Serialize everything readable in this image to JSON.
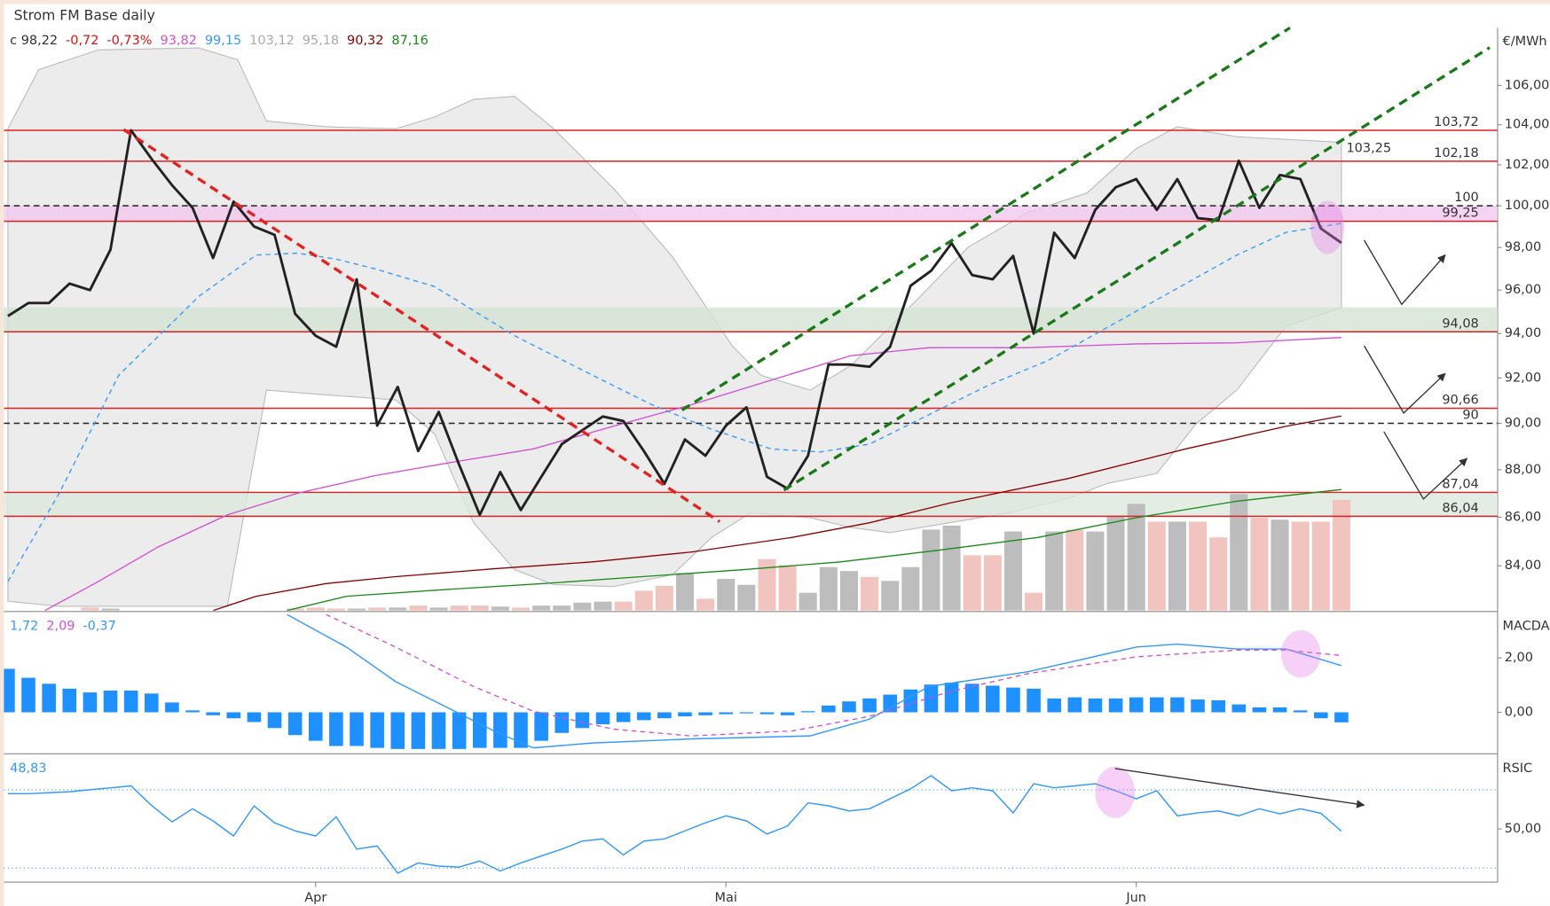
{
  "header": {
    "title": "Strom FM Base daily",
    "legend": [
      {
        "text": "c 98,22",
        "color": "#333333"
      },
      {
        "text": "-0,72",
        "color": "#dd1111"
      },
      {
        "text": "-0,73%",
        "color": "#dd1111"
      },
      {
        "text": "93,82",
        "color": "#d050d0"
      },
      {
        "text": "99,15",
        "color": "#3399ff"
      },
      {
        "text": "103,12",
        "color": "#aaaaaa"
      },
      {
        "text": "95,18",
        "color": "#aaaaaa"
      },
      {
        "text": "90,32",
        "color": "#8b0000"
      },
      {
        "text": "87,16",
        "color": "#1a8a1a"
      }
    ],
    "annotation": {
      "text": "103,25",
      "color": "#1a8a1a"
    }
  },
  "chart_data": [
    {
      "type": "line",
      "unit": "€/MWh",
      "log": true,
      "categories": [
        null,
        null,
        null,
        null,
        null,
        null,
        null,
        null,
        null,
        null,
        null,
        null,
        null,
        null,
        null,
        "Apr",
        null,
        null,
        null,
        null,
        null,
        null,
        null,
        null,
        null,
        null,
        null,
        null,
        null,
        null,
        null,
        null,
        null,
        null,
        null,
        "Mai",
        null,
        null,
        null,
        null,
        null,
        null,
        null,
        null,
        null,
        null,
        null,
        null,
        null,
        null,
        null,
        null,
        null,
        null,
        null,
        "Jun",
        null,
        null,
        null,
        null,
        null,
        null,
        null,
        null,
        null,
        null
      ],
      "ylim": [
        82.2,
        109
      ],
      "yticks": [
        {
          "value": 84,
          "label": "84,00"
        },
        {
          "value": 86,
          "label": "86,00"
        },
        {
          "value": 88,
          "label": "88,00"
        },
        {
          "value": 90,
          "label": "90,00"
        },
        {
          "value": 92,
          "label": "92,00"
        },
        {
          "value": 94,
          "label": "94,00"
        },
        {
          "value": 96,
          "label": "96,00"
        },
        {
          "value": 98,
          "label": "98,00"
        },
        {
          "value": 100,
          "label": "100,00"
        },
        {
          "value": 102,
          "label": "102,00"
        },
        {
          "value": 104,
          "label": "104,00"
        },
        {
          "value": 106,
          "label": "106,00"
        }
      ],
      "band": {
        "color": "#ececec",
        "upper": {
          "x": [
            0,
            1.5,
            4.4,
            9.3,
            11.2,
            12.6,
            15.5,
            18.9,
            20.8,
            22.7,
            24.7,
            26.6,
            29.5,
            32.4,
            35.3,
            36.7,
            39.1,
            41.1,
            44.0,
            46.8,
            49.7,
            52.6,
            55.0,
            57.0,
            59.9,
            65.0
          ],
          "values": [
            103.8,
            106.81,
            107.84,
            107.94,
            107.33,
            104.19,
            103.9,
            103.8,
            104.39,
            105.29,
            105.44,
            103.8,
            100.86,
            97.55,
            93.45,
            92.12,
            91.46,
            92.56,
            95.25,
            98.01,
            99.67,
            100.62,
            102.81,
            103.9,
            103.4,
            103.12
          ]
        },
        "lower": {
          "x": [
            0,
            2.5,
            10.7,
            12.6,
            15.5,
            18.9,
            20.8,
            22.7,
            24.7,
            26.6,
            29.5,
            32.4,
            34.3,
            36.2,
            39.1,
            41.1,
            43.0,
            45.9,
            48.8,
            51.7,
            53.6,
            56.0,
            57.9,
            59.9,
            62.3,
            65.0
          ],
          "values": [
            82.57,
            82.37,
            82.37,
            91.46,
            91.25,
            91.03,
            89.53,
            85.77,
            83.84,
            83.24,
            83.16,
            83.64,
            85.16,
            86.18,
            85.98,
            85.57,
            85.36,
            85.77,
            86.18,
            86.79,
            87.42,
            87.84,
            89.96,
            91.46,
            94.34,
            95.18
          ]
        }
      },
      "zones": [
        {
          "from": 99.25,
          "to": 100,
          "color": "#f3c8f0"
        },
        {
          "from": 94.08,
          "to": 95.2,
          "color": "#d3e3d3"
        },
        {
          "from": 86.04,
          "to": 87.04,
          "color": "#dce8dc"
        }
      ],
      "levels": [
        {
          "value": 103.72,
          "label": "103,72",
          "color": "#e02020"
        },
        {
          "value": 102.18,
          "label": "102,18",
          "color": "#e02020"
        },
        {
          "value": 100,
          "color": "#222222",
          "dash": true
        },
        {
          "value": 99.25,
          "label": "99,25",
          "color": "#e02020"
        },
        {
          "value": 94.08,
          "label": "94,08",
          "color": "#e02020"
        },
        {
          "value": 90.66,
          "label": "90,66",
          "color": "#e02020"
        },
        {
          "value": 90,
          "color": "#222222",
          "dash": true
        },
        {
          "value": 87.04,
          "label": "87,04",
          "color": "#e02020"
        },
        {
          "value": 86.04,
          "label": "86,04",
          "color": "#e02020"
        }
      ],
      "volume": {
        "vlim": [
          0,
          590
        ],
        "up_color": "#bdbdbd",
        "down_color": "#f2c4c0",
        "values": [
          0,
          0,
          0,
          0,
          3,
          2,
          0,
          0,
          0,
          0,
          0,
          0,
          0,
          0,
          2,
          3,
          2,
          2,
          3,
          3,
          5,
          3,
          5,
          5,
          4,
          3,
          5,
          5,
          8,
          9,
          9,
          20,
          25,
          38,
          12,
          32,
          26,
          52,
          46,
          18,
          44,
          40,
          34,
          30,
          44,
          82,
          86,
          56,
          56,
          80,
          18,
          80,
          82,
          80,
          96,
          108,
          90,
          90,
          90,
          74,
          118,
          94,
          92,
          90,
          90,
          112
        ]
      },
      "series": [
        {
          "color": "#8b0000",
          "width": 1.2,
          "x": [
            10.0,
            12.1,
            15.5,
            18.9,
            23.7,
            28.5,
            33.3,
            38.2,
            42.0,
            45.9,
            51.7,
            57.4,
            62.3,
            65.0
          ],
          "values": [
            82.2,
            82.77,
            83.28,
            83.56,
            83.88,
            84.16,
            84.56,
            85.16,
            85.77,
            86.59,
            87.63,
            88.89,
            89.87,
            90.32
          ]
        },
        {
          "color": "#1a8a1a",
          "width": 1.2,
          "x": [
            13.6,
            16.5,
            21.3,
            26.1,
            30.9,
            35.8,
            40.6,
            45.4,
            50.2,
            55.0,
            59.9,
            65.0
          ],
          "values": [
            82.2,
            82.77,
            83.04,
            83.28,
            83.56,
            83.84,
            84.16,
            84.64,
            85.16,
            85.98,
            86.67,
            87.16
          ]
        },
        {
          "color": "#d050d0",
          "width": 1.2,
          "x": [
            1.8,
            4.4,
            7.3,
            10.7,
            14.1,
            17.9,
            21.8,
            25.6,
            29.5,
            33.3,
            37.2,
            41.1,
            44.9,
            49.7,
            55.0,
            59.9,
            65.0
          ],
          "values": [
            82.2,
            83.36,
            84.76,
            86.1,
            87.0,
            87.75,
            88.34,
            88.89,
            89.87,
            90.81,
            91.9,
            93.0,
            93.36,
            93.36,
            93.53,
            93.58,
            93.82
          ]
        },
        {
          "color": "#3399ff",
          "width": 1.2,
          "dash": true,
          "x": [
            0,
            2.5,
            5.4,
            9.3,
            12.1,
            14.1,
            16.0,
            17.9,
            20.8,
            24.7,
            28.5,
            31.4,
            34.3,
            37.2,
            39.6,
            42.0,
            44.9,
            47.8,
            50.7,
            55.0,
            59.9,
            62.3,
            65.0
          ],
          "values": [
            83.36,
            87.0,
            92.12,
            95.7,
            97.64,
            97.73,
            97.45,
            96.99,
            96.16,
            93.9,
            92.12,
            90.81,
            89.74,
            88.89,
            88.76,
            89.1,
            90.38,
            91.68,
            92.78,
            95.02,
            97.64,
            98.72,
            99.15
          ]
        },
        {
          "color": "#222222",
          "width": 2.6,
          "values": [
            94.8,
            95.4,
            95.4,
            96.3,
            96.0,
            97.9,
            103.72,
            102.3,
            101.0,
            99.9,
            97.5,
            100.2,
            99.0,
            98.6,
            94.9,
            93.9,
            93.4,
            96.5,
            89.9,
            91.6,
            88.8,
            90.5,
            88.2,
            86.1,
            87.9,
            86.3,
            87.7,
            89.1,
            89.7,
            90.3,
            90.1,
            88.8,
            87.4,
            89.3,
            88.6,
            89.9,
            90.7,
            87.7,
            87.2,
            88.6,
            92.6,
            92.6,
            92.5,
            93.4,
            96.2,
            96.9,
            98.2,
            96.7,
            96.5,
            97.6,
            94.0,
            98.7,
            97.5,
            99.8,
            100.9,
            101.3,
            99.8,
            101.3,
            99.4,
            99.3,
            102.2,
            99.9,
            101.5,
            101.3,
            98.9,
            98.22
          ]
        }
      ]
    },
    {
      "type": "bar",
      "unit": "MACDA",
      "color": "#1e90ff",
      "ylim": [
        -1.49,
        3.6
      ],
      "yticks": [
        {
          "value": 0,
          "label": "0,00"
        },
        {
          "value": 2,
          "label": "2,00"
        }
      ],
      "legend": [
        {
          "text": "1,72",
          "color": "#3399ff"
        },
        {
          "text": "2,09",
          "color": "#d050d0"
        },
        {
          "text": "-0,37",
          "color": "#3399ff"
        }
      ],
      "values": [
        1.6,
        1.27,
        1.05,
        0.87,
        0.73,
        0.8,
        0.8,
        0.69,
        0.36,
        0.07,
        -0.11,
        -0.22,
        -0.36,
        -0.58,
        -0.84,
        -1.05,
        -1.24,
        -1.24,
        -1.31,
        -1.35,
        -1.35,
        -1.35,
        -1.35,
        -1.31,
        -1.31,
        -1.31,
        -1.05,
        -0.76,
        -0.58,
        -0.44,
        -0.36,
        -0.29,
        -0.22,
        -0.15,
        -0.11,
        -0.07,
        -0.04,
        -0.07,
        -0.11,
        0.04,
        0.25,
        0.4,
        0.51,
        0.65,
        0.84,
        1.02,
        1.09,
        1.05,
        0.98,
        0.91,
        0.87,
        0.51,
        0.55,
        0.51,
        0.51,
        0.55,
        0.55,
        0.55,
        0.47,
        0.44,
        0.29,
        0.18,
        0.18,
        0.07,
        -0.22,
        -0.37
      ],
      "series": [
        {
          "color": "#3399ff",
          "width": 1.3,
          "x": [
            13.6,
            16.5,
            18.9,
            21.3,
            23.7,
            25.6,
            28.5,
            33.3,
            39.1,
            42.0,
            44.9,
            49.7,
            55.0,
            57.0,
            59.9,
            62.3,
            65.0
          ],
          "values": [
            3.6,
            2.4,
            1.13,
            0.22,
            -0.69,
            -1.31,
            -1.13,
            -0.98,
            -0.87,
            -0.25,
            0.95,
            1.49,
            2.4,
            2.51,
            2.33,
            2.33,
            1.72
          ]
        },
        {
          "color": "#d050d0",
          "width": 1.2,
          "dash": true,
          "x": [
            15.5,
            18.9,
            22.7,
            25.6,
            29.5,
            33.3,
            38.2,
            42.0,
            45.9,
            49.7,
            55.0,
            59.9,
            62.3,
            65.0
          ],
          "values": [
            3.6,
            2.4,
            0.95,
            0.04,
            -0.62,
            -0.87,
            -0.69,
            -0.15,
            0.76,
            1.42,
            2.04,
            2.29,
            2.29,
            2.09
          ]
        }
      ]
    },
    {
      "type": "line",
      "unit": "RSIC",
      "ylim": [
        23.3,
        86.9
      ],
      "yticks": [
        {
          "value": 50,
          "label": "50,00"
        }
      ],
      "legend": [
        {
          "text": "48,83",
          "color": "#3399ff"
        }
      ],
      "levels": [
        {
          "value": 70,
          "color": "#3399ff",
          "dot": true
        },
        {
          "value": 30,
          "color": "#3399ff",
          "dot": true
        }
      ],
      "series": [
        {
          "color": "#3399ff",
          "width": 1.3,
          "values": [
            68,
            68,
            68.5,
            69,
            70,
            71,
            72,
            62,
            53.6,
            60.3,
            54.1,
            46.4,
            61.8,
            53.1,
            49,
            46.4,
            56.2,
            39.7,
            41.3,
            27.4,
            32.6,
            31,
            30.5,
            33.6,
            28.5,
            32.6,
            36.2,
            39.7,
            43.8,
            44.9,
            36.7,
            43.8,
            44.9,
            49,
            53.1,
            56.7,
            54.1,
            47.4,
            51.5,
            63.3,
            61.8,
            59.2,
            60.3,
            65.4,
            70.5,
            77.2,
            69.5,
            71,
            69.5,
            58.2,
            73.1,
            71,
            72,
            73.1,
            69.5,
            65.4,
            69.5,
            56.7,
            58.2,
            59.2,
            56.7,
            60.3,
            57.7,
            60.3,
            58,
            48.83
          ]
        }
      ]
    }
  ]
}
